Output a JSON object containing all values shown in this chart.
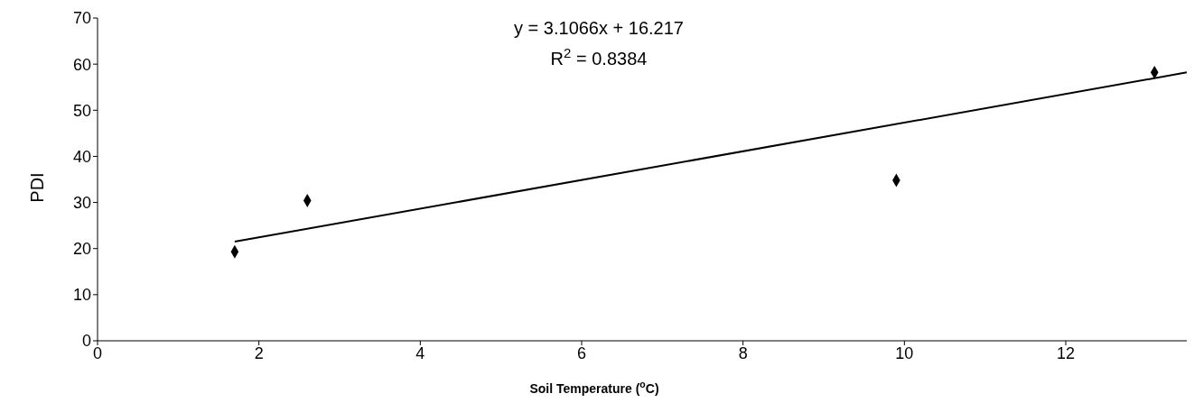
{
  "chart_data": {
    "type": "scatter",
    "xlabel": "Soil Temperature ($^{o}$C)",
    "ylabel": "PDI",
    "annotations": [
      "y = 3.1066x + 16.217",
      "R$^{2}$ = 0.8384"
    ],
    "xlim": [
      0,
      13.5
    ],
    "xticks": [
      0,
      2,
      4,
      6,
      8,
      10,
      12
    ],
    "ylim": [
      0,
      70
    ],
    "yticks": [
      0,
      10,
      20,
      30,
      40,
      50,
      60,
      70
    ],
    "series": [
      {
        "color": "#000000",
        "marker": "diamond",
        "x": [
          1.7,
          2.6,
          9.9,
          13.1
        ],
        "values": [
          19.3,
          30.4,
          34.8,
          58.2
        ]
      },
      {
        "type": "line",
        "color": "#000000",
        "line_style": "solid",
        "x": [
          1.7,
          13.5
        ],
        "values": [
          21.5,
          58.2
        ]
      }
    ]
  }
}
